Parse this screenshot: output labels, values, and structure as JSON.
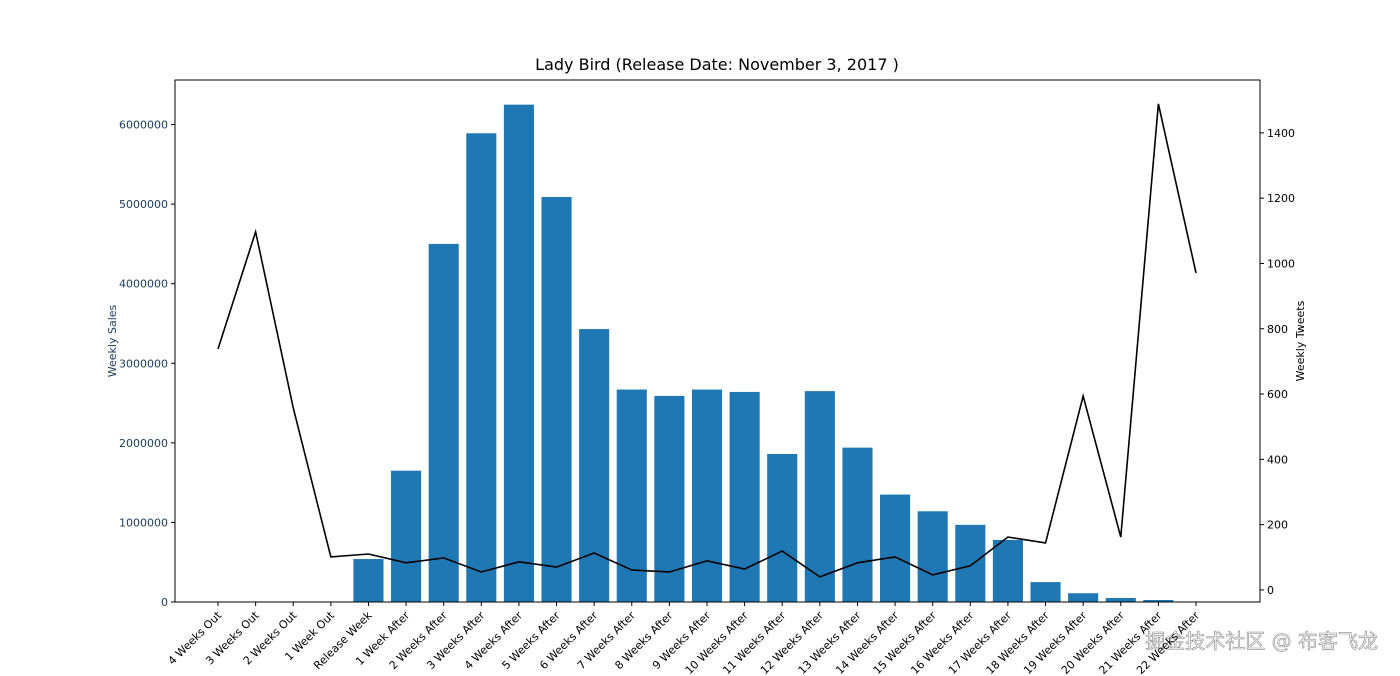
{
  "chart_data": {
    "type": "bar_line",
    "title": "Lady Bird (Release Date: November 3, 2017 )",
    "ylabel": "Weekly Sales",
    "y2label": "Weekly Tweets",
    "watermark": "掘金技术社区 @ 布客飞龙",
    "categories": [
      "4 Weeks Out",
      "3 Weeks Out",
      "2 Weeks Out",
      "1 Week Out",
      "Release Week",
      "1 Week After",
      "2 Weeks After",
      "3 Weeks After",
      "4 Weeks After",
      "5 Weeks After",
      "6 Weeks After",
      "7 Weeks After",
      "8 Weeks After",
      "9 Weeks After",
      "10 Weeks After",
      "11 Weeks After",
      "12 Weeks After",
      "13 Weeks After",
      "14 Weeks After",
      "15 Weeks After",
      "16 Weeks After",
      "17 Weeks After",
      "18 Weeks After",
      "19 Weeks After",
      "20 Weeks After",
      "21 Weeks After",
      "22 Weeks After"
    ],
    "series": [
      {
        "name": "Weekly Sales",
        "color": "#1f77b4",
        "values": [
          0,
          0,
          0,
          0,
          540000,
          1650000,
          4500000,
          5890000,
          6250000,
          5090000,
          3430000,
          2670000,
          2590000,
          2670000,
          2640000,
          1860000,
          2650000,
          1940000,
          1350000,
          1140000,
          970000,
          780000,
          250000,
          110000,
          50000,
          25000,
          0
        ]
      },
      {
        "name": "Weekly Tweets",
        "color": "#000000",
        "axis": "y2",
        "values": [
          738,
          1097,
          558,
          101,
          110,
          83,
          98,
          55,
          86,
          70,
          113,
          61,
          55,
          89,
          64,
          119,
          40,
          83,
          101,
          46,
          74,
          162,
          144,
          594,
          162,
          1489,
          971
        ]
      }
    ],
    "ylim": [
      0,
      6560000
    ],
    "yticks": [
      0,
      1000000,
      2000000,
      3000000,
      4000000,
      5000000,
      6000000
    ],
    "y2lim": [
      -37,
      1562
    ],
    "y2ticks": [
      0,
      200,
      400,
      600,
      800,
      1000,
      1200,
      1400
    ]
  }
}
